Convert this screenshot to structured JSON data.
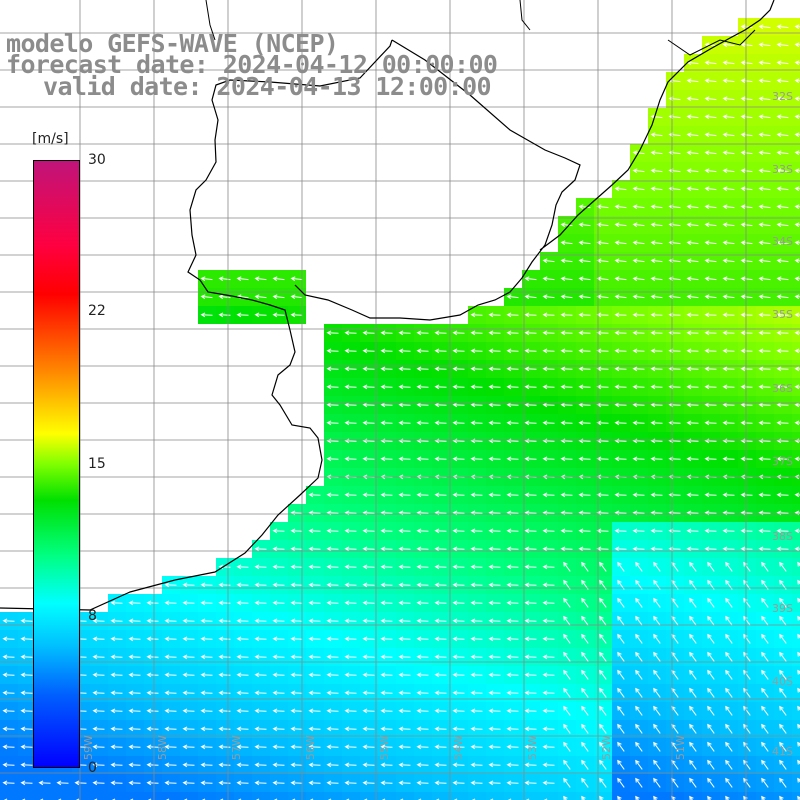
{
  "title": {
    "line1": "modelo GEFS-WAVE (NCEP)",
    "line2": "forecast date: 2024-04-12 00:00:00",
    "line3": "valid date: 2024-04-13 12:00:00"
  },
  "colorbar": {
    "unit": "[m/s]",
    "min": 0,
    "max": 30,
    "ticks": [
      "30",
      "22",
      "15",
      "8",
      "0"
    ],
    "colors": [
      "#0000ff",
      "#00c0ff",
      "#00ffff",
      "#00e000",
      "#80ff00",
      "#ffff00",
      "#ff8000",
      "#ff0000",
      "#c0147a"
    ]
  },
  "map": {
    "lat_labels": [
      "32S",
      "33S",
      "34S",
      "35S",
      "36S",
      "37S",
      "38S",
      "39S",
      "40S",
      "41S"
    ],
    "lon_labels": [
      "59W",
      "58W",
      "57W",
      "56W",
      "55W",
      "54W",
      "53W",
      "52W",
      "51W"
    ],
    "field": "wind speed",
    "land_color": "#ffffff",
    "grid_color": "#888888"
  }
}
